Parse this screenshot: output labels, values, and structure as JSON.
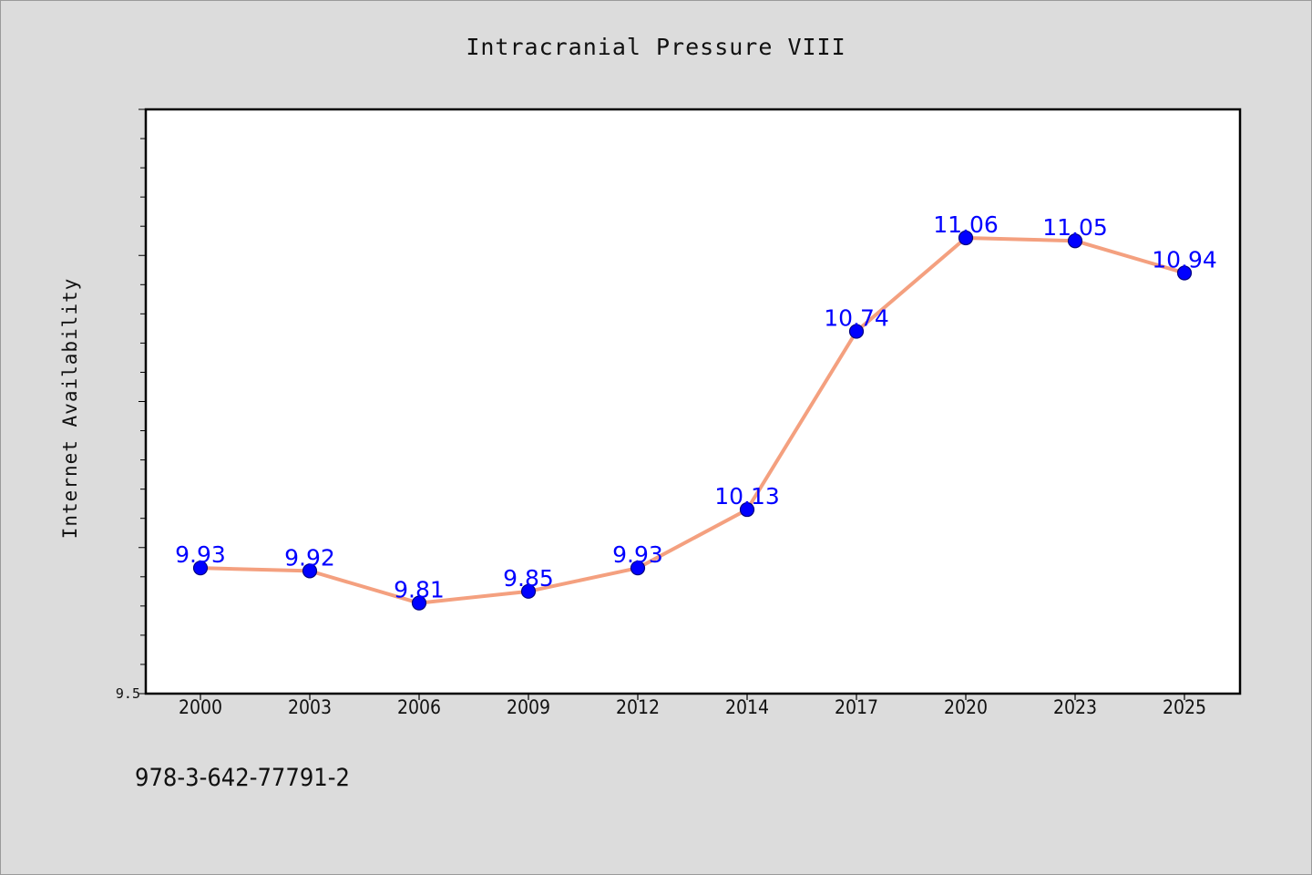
{
  "chart_data": {
    "type": "line",
    "title": "Intracranial Pressure VIII",
    "xlabel": "",
    "ylabel": "Internet Availability",
    "categories": [
      "2000",
      "2003",
      "2006",
      "2009",
      "2012",
      "2014",
      "2017",
      "2020",
      "2023",
      "2025"
    ],
    "series": [
      {
        "values": [
          9.93,
          9.92,
          9.81,
          9.85,
          9.93,
          10.13,
          10.74,
          11.06,
          11.05,
          10.94
        ]
      }
    ],
    "ylim": [
      9.5,
      11.5
    ],
    "y_tick_labels": [
      "9.5"
    ],
    "data_labels": [
      "9.93",
      "9.92",
      "9.81",
      "9.85",
      "9.93",
      "10.13",
      "10.74",
      "11.06",
      "11.05",
      "10.94"
    ],
    "grid": false,
    "legend": "none",
    "colors": {
      "line": "#f4a07f",
      "marker": "#0000ff",
      "marker_edge": "#000080",
      "label": "#0000ff",
      "background": "#dcdcdc",
      "plot_background": "#ffffff"
    }
  },
  "footer": {
    "text": "978-3-642-77791-2"
  }
}
